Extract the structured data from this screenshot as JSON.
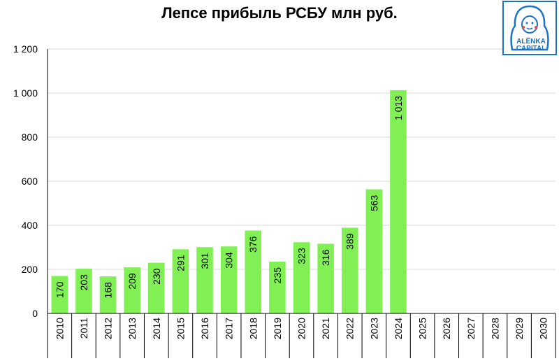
{
  "chart_data": {
    "type": "bar",
    "title": "Лепсе прибыль РСБУ млн руб.",
    "categories": [
      "2010",
      "2011",
      "2012",
      "2013",
      "2014",
      "2015",
      "2016",
      "2017",
      "2018",
      "2019",
      "2020",
      "2021",
      "2022",
      "2023",
      "2024",
      "2025",
      "2026",
      "2027",
      "2028",
      "2029",
      "2030"
    ],
    "values": [
      170,
      203,
      168,
      209,
      230,
      291,
      301,
      304,
      376,
      235,
      323,
      316,
      389,
      563,
      1013,
      null,
      null,
      null,
      null,
      null,
      null
    ],
    "value_labels": [
      "170",
      "203",
      "168",
      "209",
      "230",
      "291",
      "301",
      "304",
      "376",
      "235",
      "323",
      "316",
      "389",
      "563",
      "1 013",
      "",
      "",
      "",
      "",
      "",
      ""
    ],
    "yticks": [
      0,
      200,
      400,
      600,
      800,
      1000,
      1200
    ],
    "ytick_labels": [
      "0",
      "200",
      "400",
      "600",
      "800",
      "1 000",
      "1 200"
    ],
    "ylim": [
      0,
      1200
    ],
    "xlabel": "",
    "ylabel": "",
    "grid": true,
    "bar_color": "#80f055",
    "grid_color": "#d9d9d9"
  },
  "logo": {
    "text_line1": "ALЁNKA",
    "text_line2": "CAPITAL",
    "color": "#1a73c7"
  }
}
